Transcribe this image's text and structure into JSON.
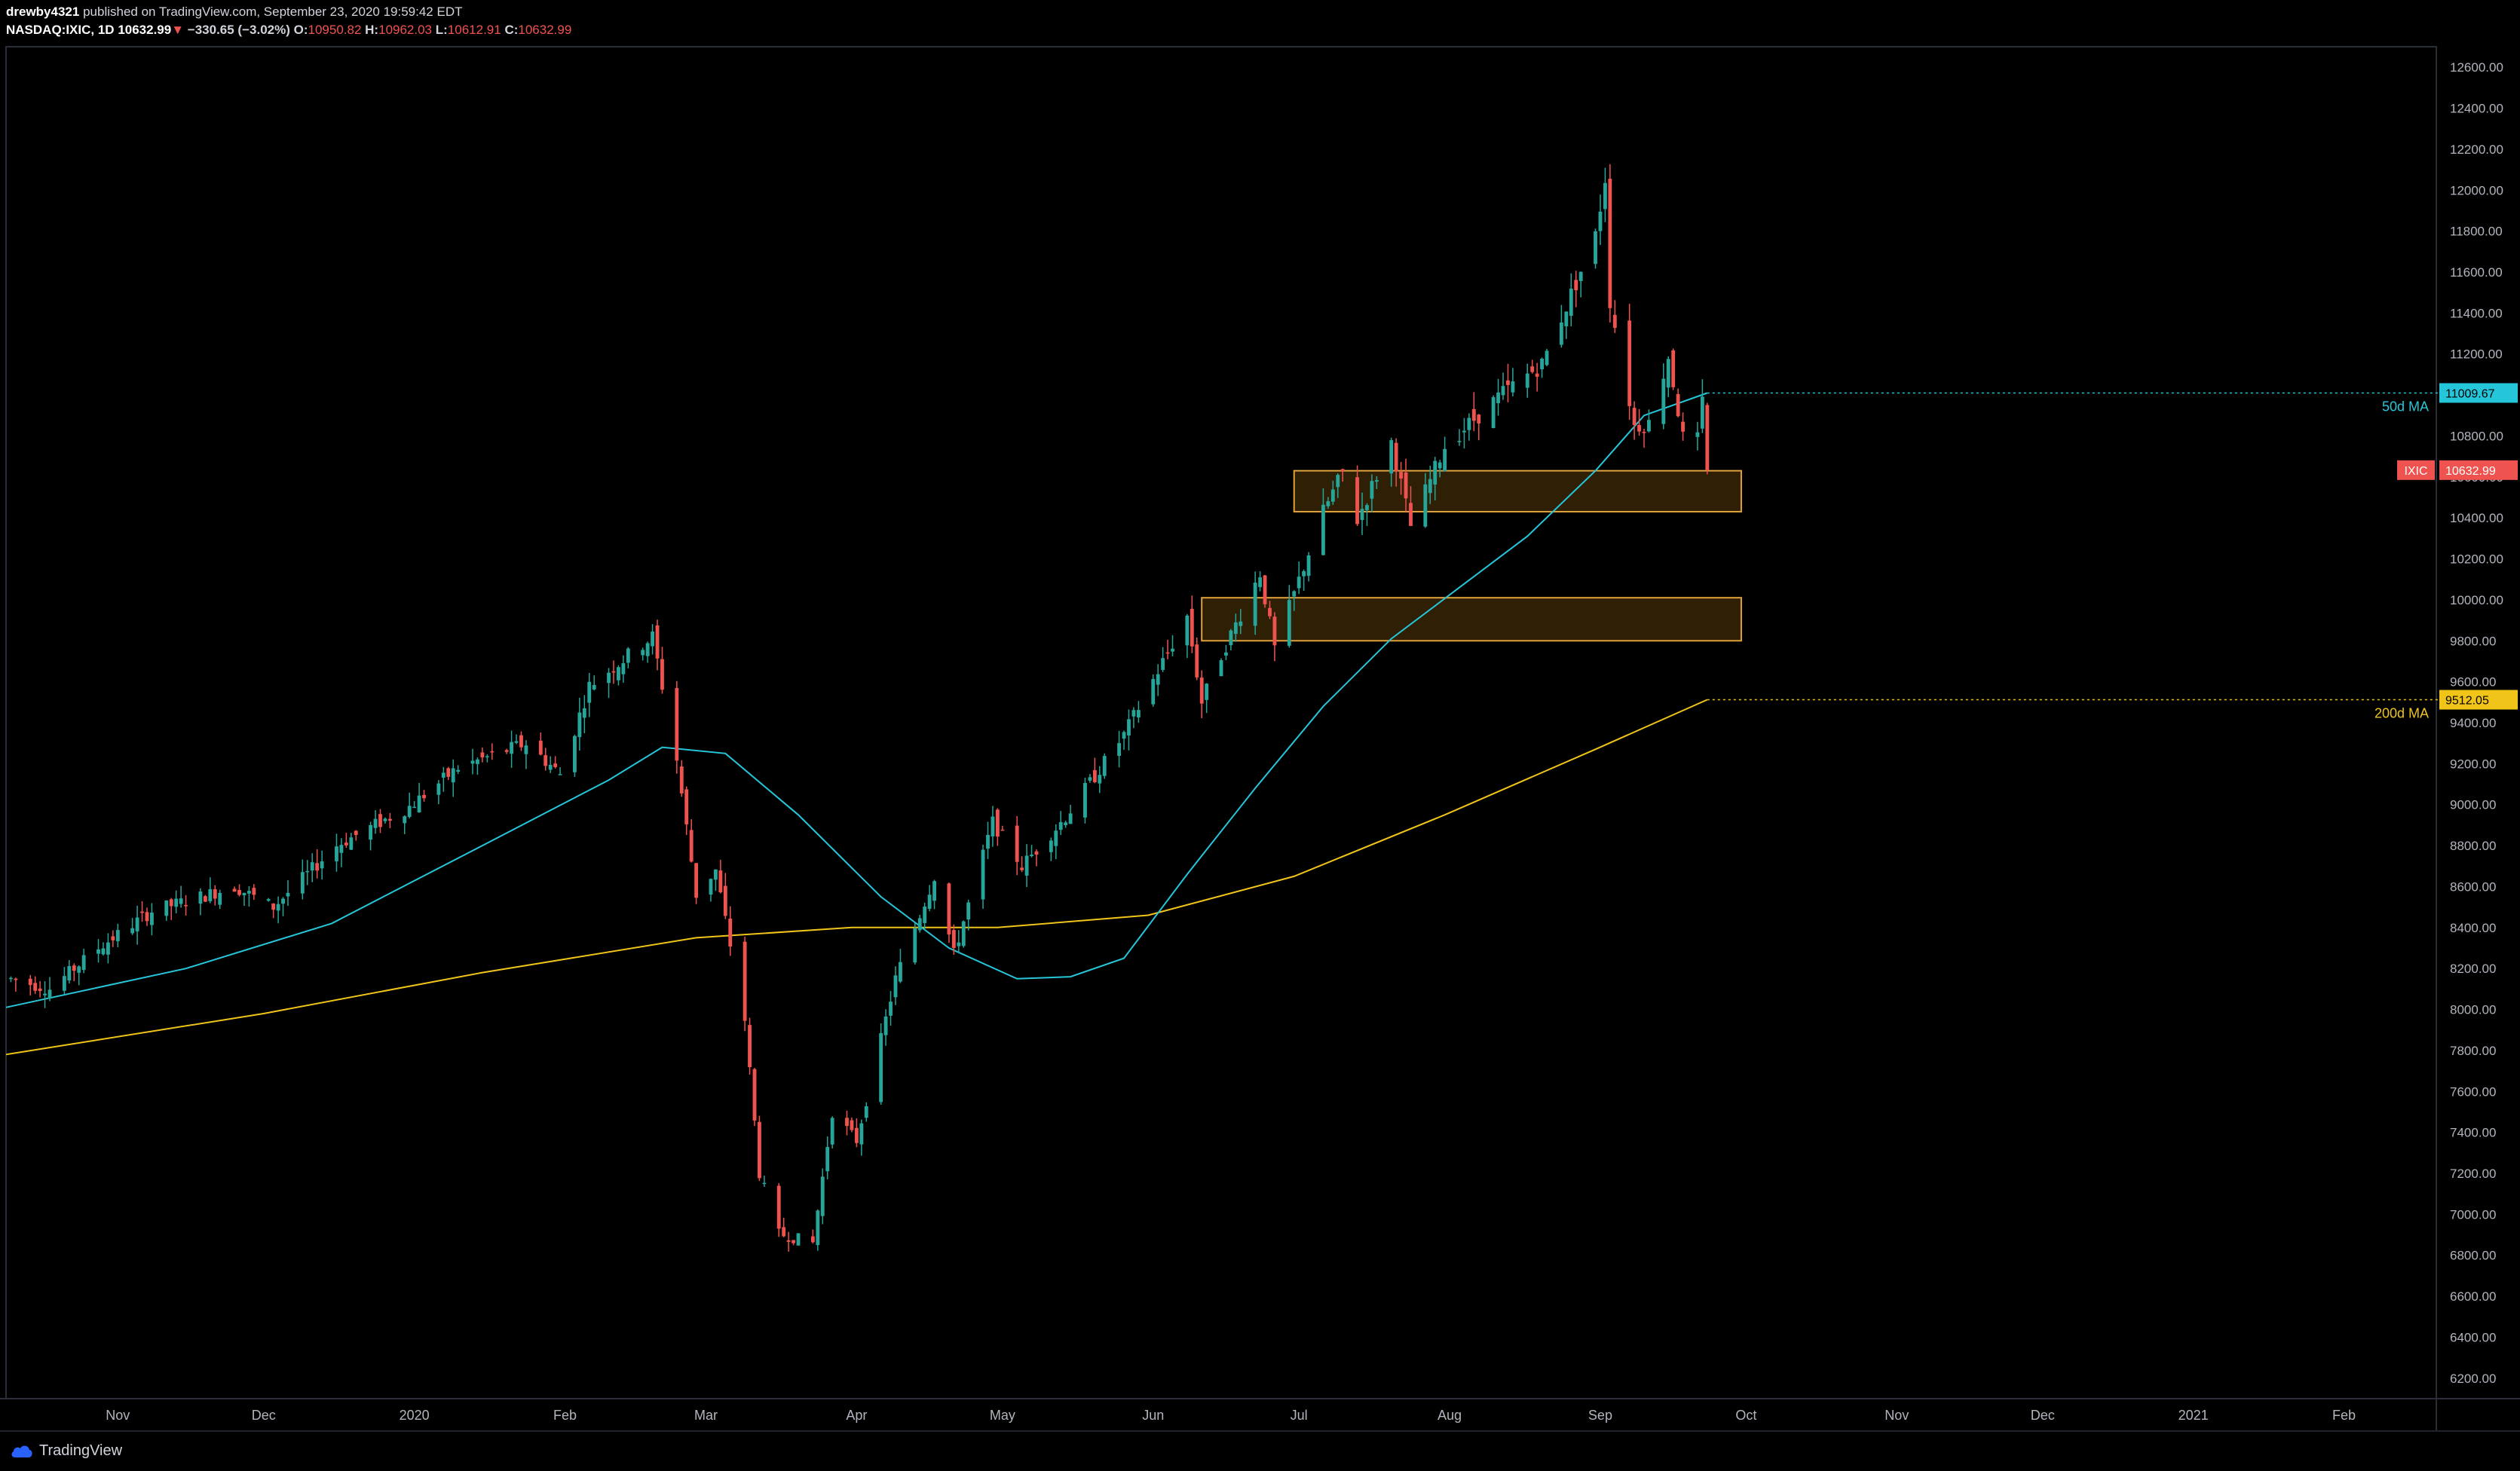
{
  "header": {
    "author": "drewby4321",
    "published_text": "published on TradingView.com, September 23, 2020 19:59:42 EDT",
    "symbol": "NASDAQ:IXIC, 1D",
    "last": "10632.99",
    "change_arrow": "▼",
    "change": "−330.65 (−3.02%)",
    "o_label": "O:",
    "o_value": "10950.82",
    "h_label": "H:",
    "h_value": "10962.03",
    "l_label": "L:",
    "l_value": "10612.91",
    "c_label": "C:",
    "c_value": "10632.99"
  },
  "footer": {
    "brand": "TradingView"
  },
  "colors": {
    "up": "#26a69a",
    "down": "#ef5350",
    "ma50": "#26c6da",
    "ma200": "#f0c419",
    "zone_fill": "#2e1f05",
    "zone_border": "#e0a23a",
    "price_tag": "#ef5350",
    "bg": "#000000"
  },
  "chart_data": {
    "type": "candlestick",
    "symbol": "IXIC",
    "y_ticks": [
      6200,
      6400,
      6600,
      6800,
      7000,
      7200,
      7400,
      7600,
      7800,
      8000,
      8200,
      8400,
      8600,
      8800,
      9000,
      9200,
      9400,
      9600,
      9800,
      10000,
      10200,
      10400,
      10600,
      10800,
      11000,
      11200,
      11400,
      11600,
      11800,
      12000,
      12200,
      12400,
      12600
    ],
    "ylim": [
      6100,
      12700
    ],
    "x_months": [
      {
        "label": "Nov",
        "date": "2019-11-01"
      },
      {
        "label": "Dec",
        "date": "2019-12-01"
      },
      {
        "label": "2020",
        "date": "2020-01-01"
      },
      {
        "label": "Feb",
        "date": "2020-02-01"
      },
      {
        "label": "Mar",
        "date": "2020-03-01"
      },
      {
        "label": "Apr",
        "date": "2020-04-01"
      },
      {
        "label": "May",
        "date": "2020-05-01"
      },
      {
        "label": "Jun",
        "date": "2020-06-01"
      },
      {
        "label": "Jul",
        "date": "2020-07-01"
      },
      {
        "label": "Aug",
        "date": "2020-08-01"
      },
      {
        "label": "Sep",
        "date": "2020-09-01"
      },
      {
        "label": "Oct",
        "date": "2020-10-01"
      },
      {
        "label": "Nov",
        "date": "2020-11-01"
      },
      {
        "label": "Dec",
        "date": "2020-12-01"
      },
      {
        "label": "2021",
        "date": "2021-01-01"
      },
      {
        "label": "Feb",
        "date": "2021-02-01"
      }
    ],
    "x_range": [
      "2019-10-09",
      "2021-02-20"
    ],
    "price_path": [
      [
        "2019-10-10",
        8150
      ],
      [
        "2019-10-18",
        8100
      ],
      [
        "2019-10-28",
        8300
      ],
      [
        "2019-11-08",
        8480
      ],
      [
        "2019-11-25",
        8600
      ],
      [
        "2019-12-03",
        8500
      ],
      [
        "2019-12-16",
        8800
      ],
      [
        "2019-12-31",
        8990
      ],
      [
        "2020-01-10",
        9180
      ],
      [
        "2020-01-24",
        9300
      ],
      [
        "2020-01-31",
        9150
      ],
      [
        "2020-02-06",
        9580
      ],
      [
        "2020-02-19",
        9820
      ],
      [
        "2020-02-24",
        9220
      ],
      [
        "2020-02-28",
        8560
      ],
      [
        "2020-03-03",
        8680
      ],
      [
        "2020-03-09",
        7950
      ],
      [
        "2020-03-12",
        7200
      ],
      [
        "2020-03-16",
        6905
      ],
      [
        "2020-03-20",
        6880
      ],
      [
        "2020-03-23",
        6860
      ],
      [
        "2020-03-27",
        7500
      ],
      [
        "2020-04-01",
        7360
      ],
      [
        "2020-04-09",
        8150
      ],
      [
        "2020-04-17",
        8650
      ],
      [
        "2020-04-21",
        8270
      ],
      [
        "2020-04-29",
        8915
      ],
      [
        "2020-05-05",
        8700
      ],
      [
        "2020-05-14",
        8940
      ],
      [
        "2020-05-26",
        9340
      ],
      [
        "2020-06-08",
        9920
      ],
      [
        "2020-06-11",
        9500
      ],
      [
        "2020-06-15",
        9730
      ],
      [
        "2020-06-23",
        10130
      ],
      [
        "2020-06-26",
        9760
      ],
      [
        "2020-07-06",
        10430
      ],
      [
        "2020-07-10",
        10620
      ],
      [
        "2020-07-13",
        10390
      ],
      [
        "2020-07-20",
        10770
      ],
      [
        "2020-07-24",
        10360
      ],
      [
        "2020-07-31",
        10750
      ],
      [
        "2020-08-12",
        11010
      ],
      [
        "2020-08-20",
        11150
      ],
      [
        "2020-08-31",
        11775
      ],
      [
        "2020-09-02",
        12060
      ],
      [
        "2020-09-03",
        11460
      ],
      [
        "2020-09-08",
        10850
      ],
      [
        "2020-09-11",
        10860
      ],
      [
        "2020-09-15",
        11190
      ],
      [
        "2020-09-18",
        10790
      ],
      [
        "2020-09-21",
        10780
      ],
      [
        "2020-09-22",
        10963
      ],
      [
        "2020-09-23",
        10633
      ]
    ],
    "last_ohlc": {
      "date": "2020-09-23",
      "open": 10950.82,
      "high": 10962.03,
      "low": 10612.91,
      "close": 10632.99
    },
    "ma50_path": [
      [
        "2019-10-09",
        8010
      ],
      [
        "2019-11-15",
        8200
      ],
      [
        "2019-12-15",
        8420
      ],
      [
        "2020-01-15",
        8800
      ],
      [
        "2020-02-10",
        9120
      ],
      [
        "2020-02-21",
        9280
      ],
      [
        "2020-03-05",
        9250
      ],
      [
        "2020-03-20",
        8950
      ],
      [
        "2020-04-06",
        8550
      ],
      [
        "2020-04-20",
        8300
      ],
      [
        "2020-05-04",
        8150
      ],
      [
        "2020-05-15",
        8160
      ],
      [
        "2020-05-26",
        8250
      ],
      [
        "2020-06-08",
        8660
      ],
      [
        "2020-06-22",
        9080
      ],
      [
        "2020-07-06",
        9480
      ],
      [
        "2020-07-20",
        9810
      ],
      [
        "2020-08-03",
        10060
      ],
      [
        "2020-08-17",
        10310
      ],
      [
        "2020-08-31",
        10630
      ],
      [
        "2020-09-10",
        10900
      ],
      [
        "2020-09-23",
        11009.67
      ]
    ],
    "ma200_path": [
      [
        "2019-10-09",
        7780
      ],
      [
        "2019-12-01",
        7980
      ],
      [
        "2020-01-15",
        8180
      ],
      [
        "2020-02-28",
        8350
      ],
      [
        "2020-03-31",
        8400
      ],
      [
        "2020-04-30",
        8400
      ],
      [
        "2020-05-31",
        8460
      ],
      [
        "2020-06-30",
        8650
      ],
      [
        "2020-07-31",
        8950
      ],
      [
        "2020-08-31",
        9270
      ],
      [
        "2020-09-23",
        9512.05
      ]
    ],
    "ma50_value": "11009.67",
    "ma50_label": "50d MA",
    "ma200_value": "9512.05",
    "ma200_label": "200d MA",
    "price_tag_symbol": "IXIC",
    "price_tag_value": "10632.99",
    "zones": [
      {
        "from": "2020-06-30",
        "to": "2020-09-30",
        "low": 10430,
        "high": 10630
      },
      {
        "from": "2020-06-11",
        "to": "2020-09-30",
        "low": 9800,
        "high": 10010
      }
    ],
    "grid": false,
    "legend": "none"
  }
}
